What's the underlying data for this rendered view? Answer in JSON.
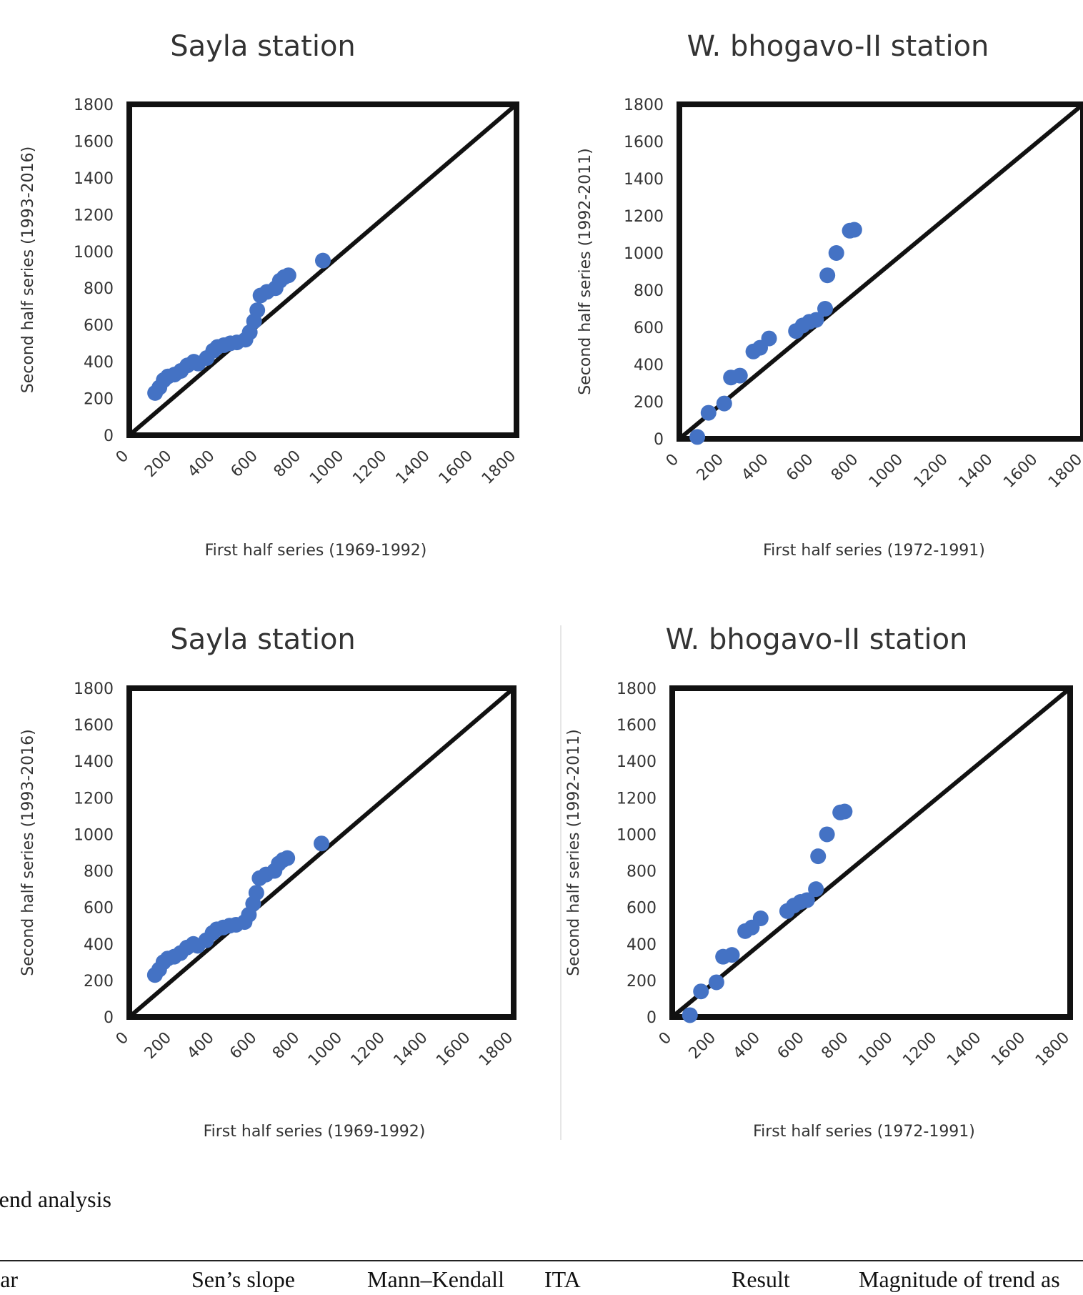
{
  "chart_data": [
    {
      "type": "scatter",
      "title": "Sayla station",
      "xlabel": "First half series (1969-1992)",
      "ylabel": "Second half series (1993-2016)",
      "xlim": [
        0,
        1800
      ],
      "ylim": [
        0,
        1800
      ],
      "ticks": [
        "0",
        "200",
        "400",
        "600",
        "800",
        "1000",
        "1200",
        "1400",
        "1600",
        "1800"
      ],
      "reference_line": "1:1",
      "points": [
        {
          "x": 120,
          "y": 230
        },
        {
          "x": 140,
          "y": 260
        },
        {
          "x": 160,
          "y": 300
        },
        {
          "x": 180,
          "y": 320
        },
        {
          "x": 210,
          "y": 330
        },
        {
          "x": 240,
          "y": 350
        },
        {
          "x": 270,
          "y": 380
        },
        {
          "x": 300,
          "y": 400
        },
        {
          "x": 320,
          "y": 390
        },
        {
          "x": 360,
          "y": 420
        },
        {
          "x": 390,
          "y": 460
        },
        {
          "x": 410,
          "y": 480
        },
        {
          "x": 440,
          "y": 490
        },
        {
          "x": 470,
          "y": 500
        },
        {
          "x": 500,
          "y": 505
        },
        {
          "x": 540,
          "y": 520
        },
        {
          "x": 560,
          "y": 560
        },
        {
          "x": 580,
          "y": 620
        },
        {
          "x": 595,
          "y": 680
        },
        {
          "x": 610,
          "y": 760
        },
        {
          "x": 640,
          "y": 780
        },
        {
          "x": 680,
          "y": 800
        },
        {
          "x": 700,
          "y": 840
        },
        {
          "x": 720,
          "y": 860
        },
        {
          "x": 740,
          "y": 870
        },
        {
          "x": 900,
          "y": 950
        }
      ]
    },
    {
      "type": "scatter",
      "title": "W. bhogavo-II station",
      "xlabel": "First half series (1972-1991)",
      "ylabel": "Second half series (1992-2011)",
      "xlim": [
        0,
        1800
      ],
      "ylim": [
        0,
        1800
      ],
      "ticks": [
        "0",
        "200",
        "400",
        "600",
        "800",
        "1000",
        "1200",
        "1400",
        "1600",
        "1800"
      ],
      "reference_line": "1:1",
      "points": [
        {
          "x": 80,
          "y": 10
        },
        {
          "x": 130,
          "y": 140
        },
        {
          "x": 200,
          "y": 190
        },
        {
          "x": 230,
          "y": 330
        },
        {
          "x": 270,
          "y": 340
        },
        {
          "x": 330,
          "y": 470
        },
        {
          "x": 360,
          "y": 490
        },
        {
          "x": 400,
          "y": 540
        },
        {
          "x": 520,
          "y": 580
        },
        {
          "x": 550,
          "y": 610
        },
        {
          "x": 580,
          "y": 630
        },
        {
          "x": 610,
          "y": 640
        },
        {
          "x": 650,
          "y": 700
        },
        {
          "x": 660,
          "y": 880
        },
        {
          "x": 700,
          "y": 1000
        },
        {
          "x": 760,
          "y": 1120
        },
        {
          "x": 780,
          "y": 1125
        }
      ]
    },
    {
      "type": "scatter",
      "title": "Sayla station",
      "xlabel": "First half series (1969-1992)",
      "ylabel": "Second half series (1993-2016)",
      "xlim": [
        0,
        1800
      ],
      "ylim": [
        0,
        1800
      ],
      "ticks": [
        "0",
        "200",
        "400",
        "600",
        "800",
        "1000",
        "1200",
        "1400",
        "1600",
        "1800"
      ],
      "reference_line": "1:1",
      "points": [
        {
          "x": 120,
          "y": 230
        },
        {
          "x": 140,
          "y": 260
        },
        {
          "x": 160,
          "y": 300
        },
        {
          "x": 180,
          "y": 320
        },
        {
          "x": 210,
          "y": 330
        },
        {
          "x": 240,
          "y": 350
        },
        {
          "x": 270,
          "y": 380
        },
        {
          "x": 300,
          "y": 400
        },
        {
          "x": 320,
          "y": 390
        },
        {
          "x": 360,
          "y": 420
        },
        {
          "x": 390,
          "y": 460
        },
        {
          "x": 410,
          "y": 480
        },
        {
          "x": 440,
          "y": 490
        },
        {
          "x": 470,
          "y": 500
        },
        {
          "x": 500,
          "y": 505
        },
        {
          "x": 540,
          "y": 520
        },
        {
          "x": 560,
          "y": 560
        },
        {
          "x": 580,
          "y": 620
        },
        {
          "x": 595,
          "y": 680
        },
        {
          "x": 610,
          "y": 760
        },
        {
          "x": 640,
          "y": 780
        },
        {
          "x": 680,
          "y": 800
        },
        {
          "x": 700,
          "y": 840
        },
        {
          "x": 720,
          "y": 860
        },
        {
          "x": 740,
          "y": 870
        },
        {
          "x": 900,
          "y": 950
        }
      ]
    },
    {
      "type": "scatter",
      "title": "W. bhogavo-II station",
      "xlabel": "First half series (1972-1991)",
      "ylabel": "Second half series (1992-2011)",
      "xlim": [
        0,
        1800
      ],
      "ylim": [
        0,
        1800
      ],
      "ticks": [
        "0",
        "200",
        "400",
        "600",
        "800",
        "1000",
        "1200",
        "1400",
        "1600",
        "1800"
      ],
      "reference_line": "1:1",
      "points": [
        {
          "x": 80,
          "y": 10
        },
        {
          "x": 130,
          "y": 140
        },
        {
          "x": 200,
          "y": 190
        },
        {
          "x": 230,
          "y": 330
        },
        {
          "x": 270,
          "y": 340
        },
        {
          "x": 330,
          "y": 470
        },
        {
          "x": 360,
          "y": 490
        },
        {
          "x": 400,
          "y": 540
        },
        {
          "x": 520,
          "y": 580
        },
        {
          "x": 550,
          "y": 610
        },
        {
          "x": 580,
          "y": 630
        },
        {
          "x": 610,
          "y": 640
        },
        {
          "x": 650,
          "y": 700
        },
        {
          "x": 660,
          "y": 880
        },
        {
          "x": 700,
          "y": 1000
        },
        {
          "x": 760,
          "y": 1120
        },
        {
          "x": 780,
          "y": 1125
        }
      ]
    }
  ],
  "colors": {
    "point": "#4472C4",
    "frame": "#111111"
  },
  "caption": "rend analysis",
  "table": {
    "headers": [
      "ear",
      "Sen’s slope",
      "Mann–Kendall",
      "ITA",
      "Result",
      "Magnitude of trend as"
    ]
  }
}
